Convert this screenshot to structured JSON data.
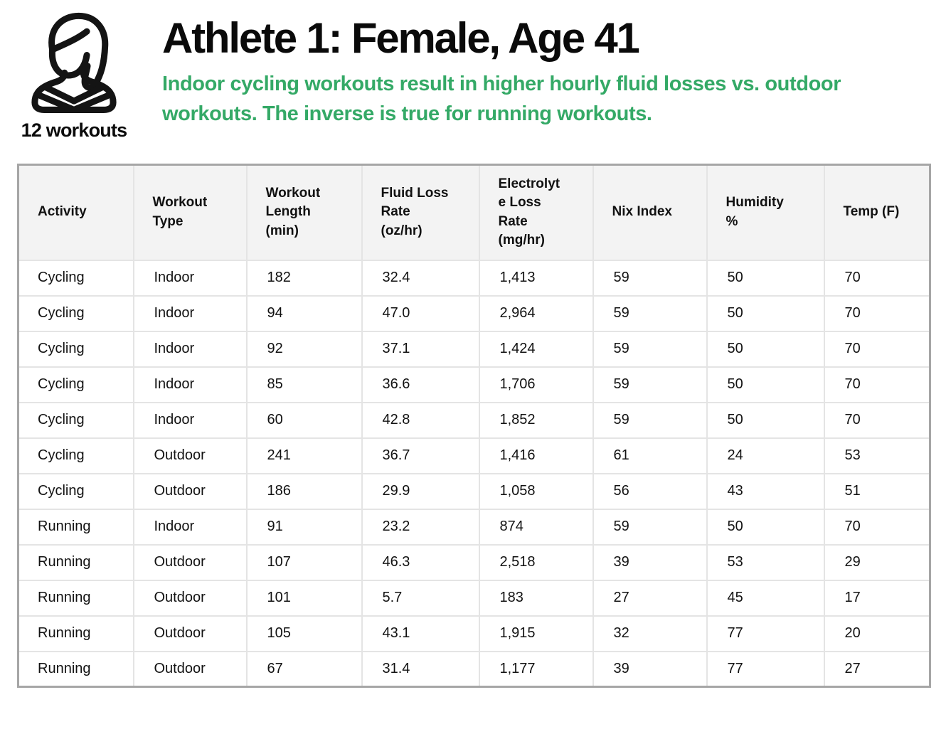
{
  "accent_color": "#34a966",
  "header": {
    "athlete_count_label": "12 workouts",
    "title": "Athlete 1: Female, Age 41",
    "subtitle": "Indoor cycling workouts result in higher hourly fluid losses vs. outdoor workouts.  The inverse is true for running workouts.",
    "icon": "female-athlete-icon"
  },
  "chart_data": {
    "type": "table",
    "title": "Athlete 1: Female, Age 41",
    "subtitle": "Indoor cycling workouts result in higher hourly fluid losses vs. outdoor workouts.  The inverse is true for running workouts.",
    "annotation": "12 workouts",
    "columns": [
      "Activity",
      "Workout Type",
      "Workout Length (min)",
      "Fluid Loss Rate (oz/hr)",
      "Electrolyte Loss Rate (mg/hr)",
      "Nix Index",
      "Humidity %",
      "Temp (F)"
    ],
    "rows": [
      [
        "Cycling",
        "Indoor",
        "182",
        "32.4",
        "1,413",
        "59",
        "50",
        "70"
      ],
      [
        "Cycling",
        "Indoor",
        "94",
        "47.0",
        "2,964",
        "59",
        "50",
        "70"
      ],
      [
        "Cycling",
        "Indoor",
        "92",
        "37.1",
        "1,424",
        "59",
        "50",
        "70"
      ],
      [
        "Cycling",
        "Indoor",
        "85",
        "36.6",
        "1,706",
        "59",
        "50",
        "70"
      ],
      [
        "Cycling",
        "Indoor",
        "60",
        "42.8",
        "1,852",
        "59",
        "50",
        "70"
      ],
      [
        "Cycling",
        "Outdoor",
        "241",
        "36.7",
        "1,416",
        "61",
        "24",
        "53"
      ],
      [
        "Cycling",
        "Outdoor",
        "186",
        "29.9",
        "1,058",
        "56",
        "43",
        "51"
      ],
      [
        "Running",
        "Indoor",
        "91",
        "23.2",
        "874",
        "59",
        "50",
        "70"
      ],
      [
        "Running",
        "Outdoor",
        "107",
        "46.3",
        "2,518",
        "39",
        "53",
        "29"
      ],
      [
        "Running",
        "Outdoor",
        "101",
        "5.7",
        "183",
        "27",
        "45",
        "17"
      ],
      [
        "Running",
        "Outdoor",
        "105",
        "43.1",
        "1,915",
        "32",
        "77",
        "20"
      ],
      [
        "Running",
        "Outdoor",
        "67",
        "31.4",
        "1,177",
        "39",
        "77",
        "27"
      ]
    ]
  }
}
